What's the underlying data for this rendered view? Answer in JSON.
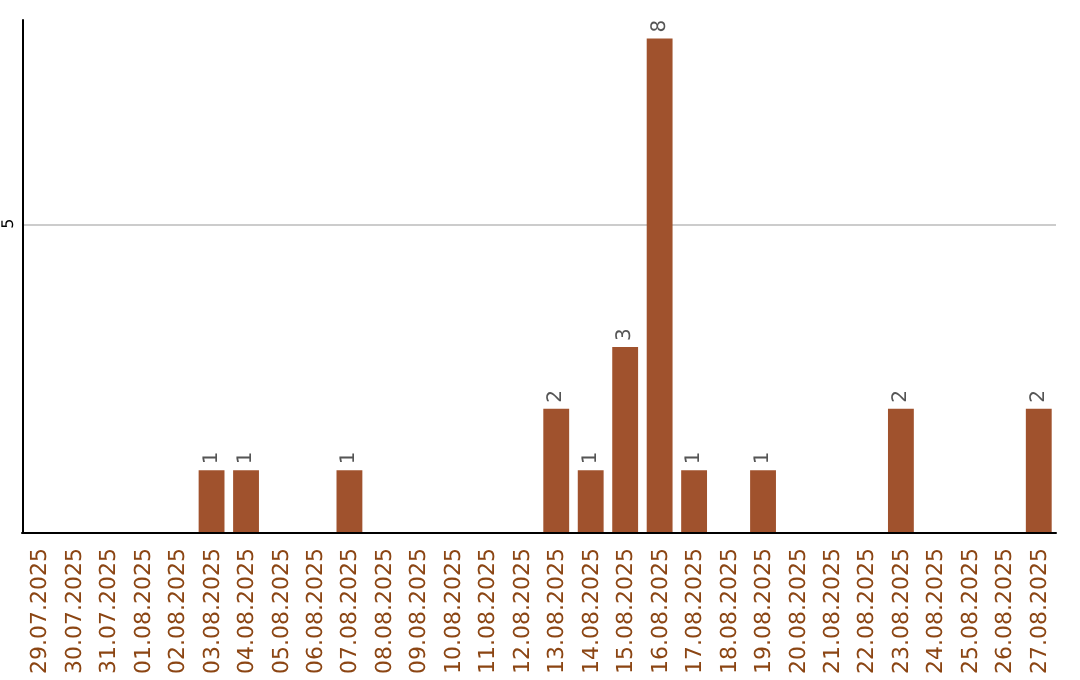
{
  "chart_data": {
    "type": "bar",
    "categories": [
      "29.07.2025",
      "30.07.2025",
      "31.07.2025",
      "01.08.2025",
      "02.08.2025",
      "03.08.2025",
      "04.08.2025",
      "05.08.2025",
      "06.08.2025",
      "07.08.2025",
      "08.08.2025",
      "09.08.2025",
      "10.08.2025",
      "11.08.2025",
      "12.08.2025",
      "13.08.2025",
      "14.08.2025",
      "15.08.2025",
      "16.08.2025",
      "17.08.2025",
      "18.08.2025",
      "19.08.2025",
      "20.08.2025",
      "21.08.2025",
      "22.08.2025",
      "23.08.2025",
      "24.08.2025",
      "25.08.2025",
      "26.08.2025",
      "27.08.2025"
    ],
    "values": [
      0,
      0,
      0,
      0,
      0,
      1,
      1,
      0,
      0,
      1,
      0,
      0,
      0,
      0,
      0,
      2,
      1,
      3,
      8,
      1,
      0,
      1,
      0,
      0,
      0,
      2,
      0,
      0,
      0,
      2
    ],
    "value_labels": [
      null,
      null,
      null,
      null,
      null,
      "1",
      "1",
      null,
      null,
      "1",
      null,
      null,
      null,
      null,
      null,
      "2",
      "1",
      "3",
      "8",
      "1",
      null,
      "1",
      null,
      null,
      null,
      "2",
      null,
      null,
      null,
      "2"
    ],
    "color": "#a0522d",
    "ylim": [
      0,
      8.3
    ],
    "yticks": [
      5
    ],
    "grid": "y"
  }
}
